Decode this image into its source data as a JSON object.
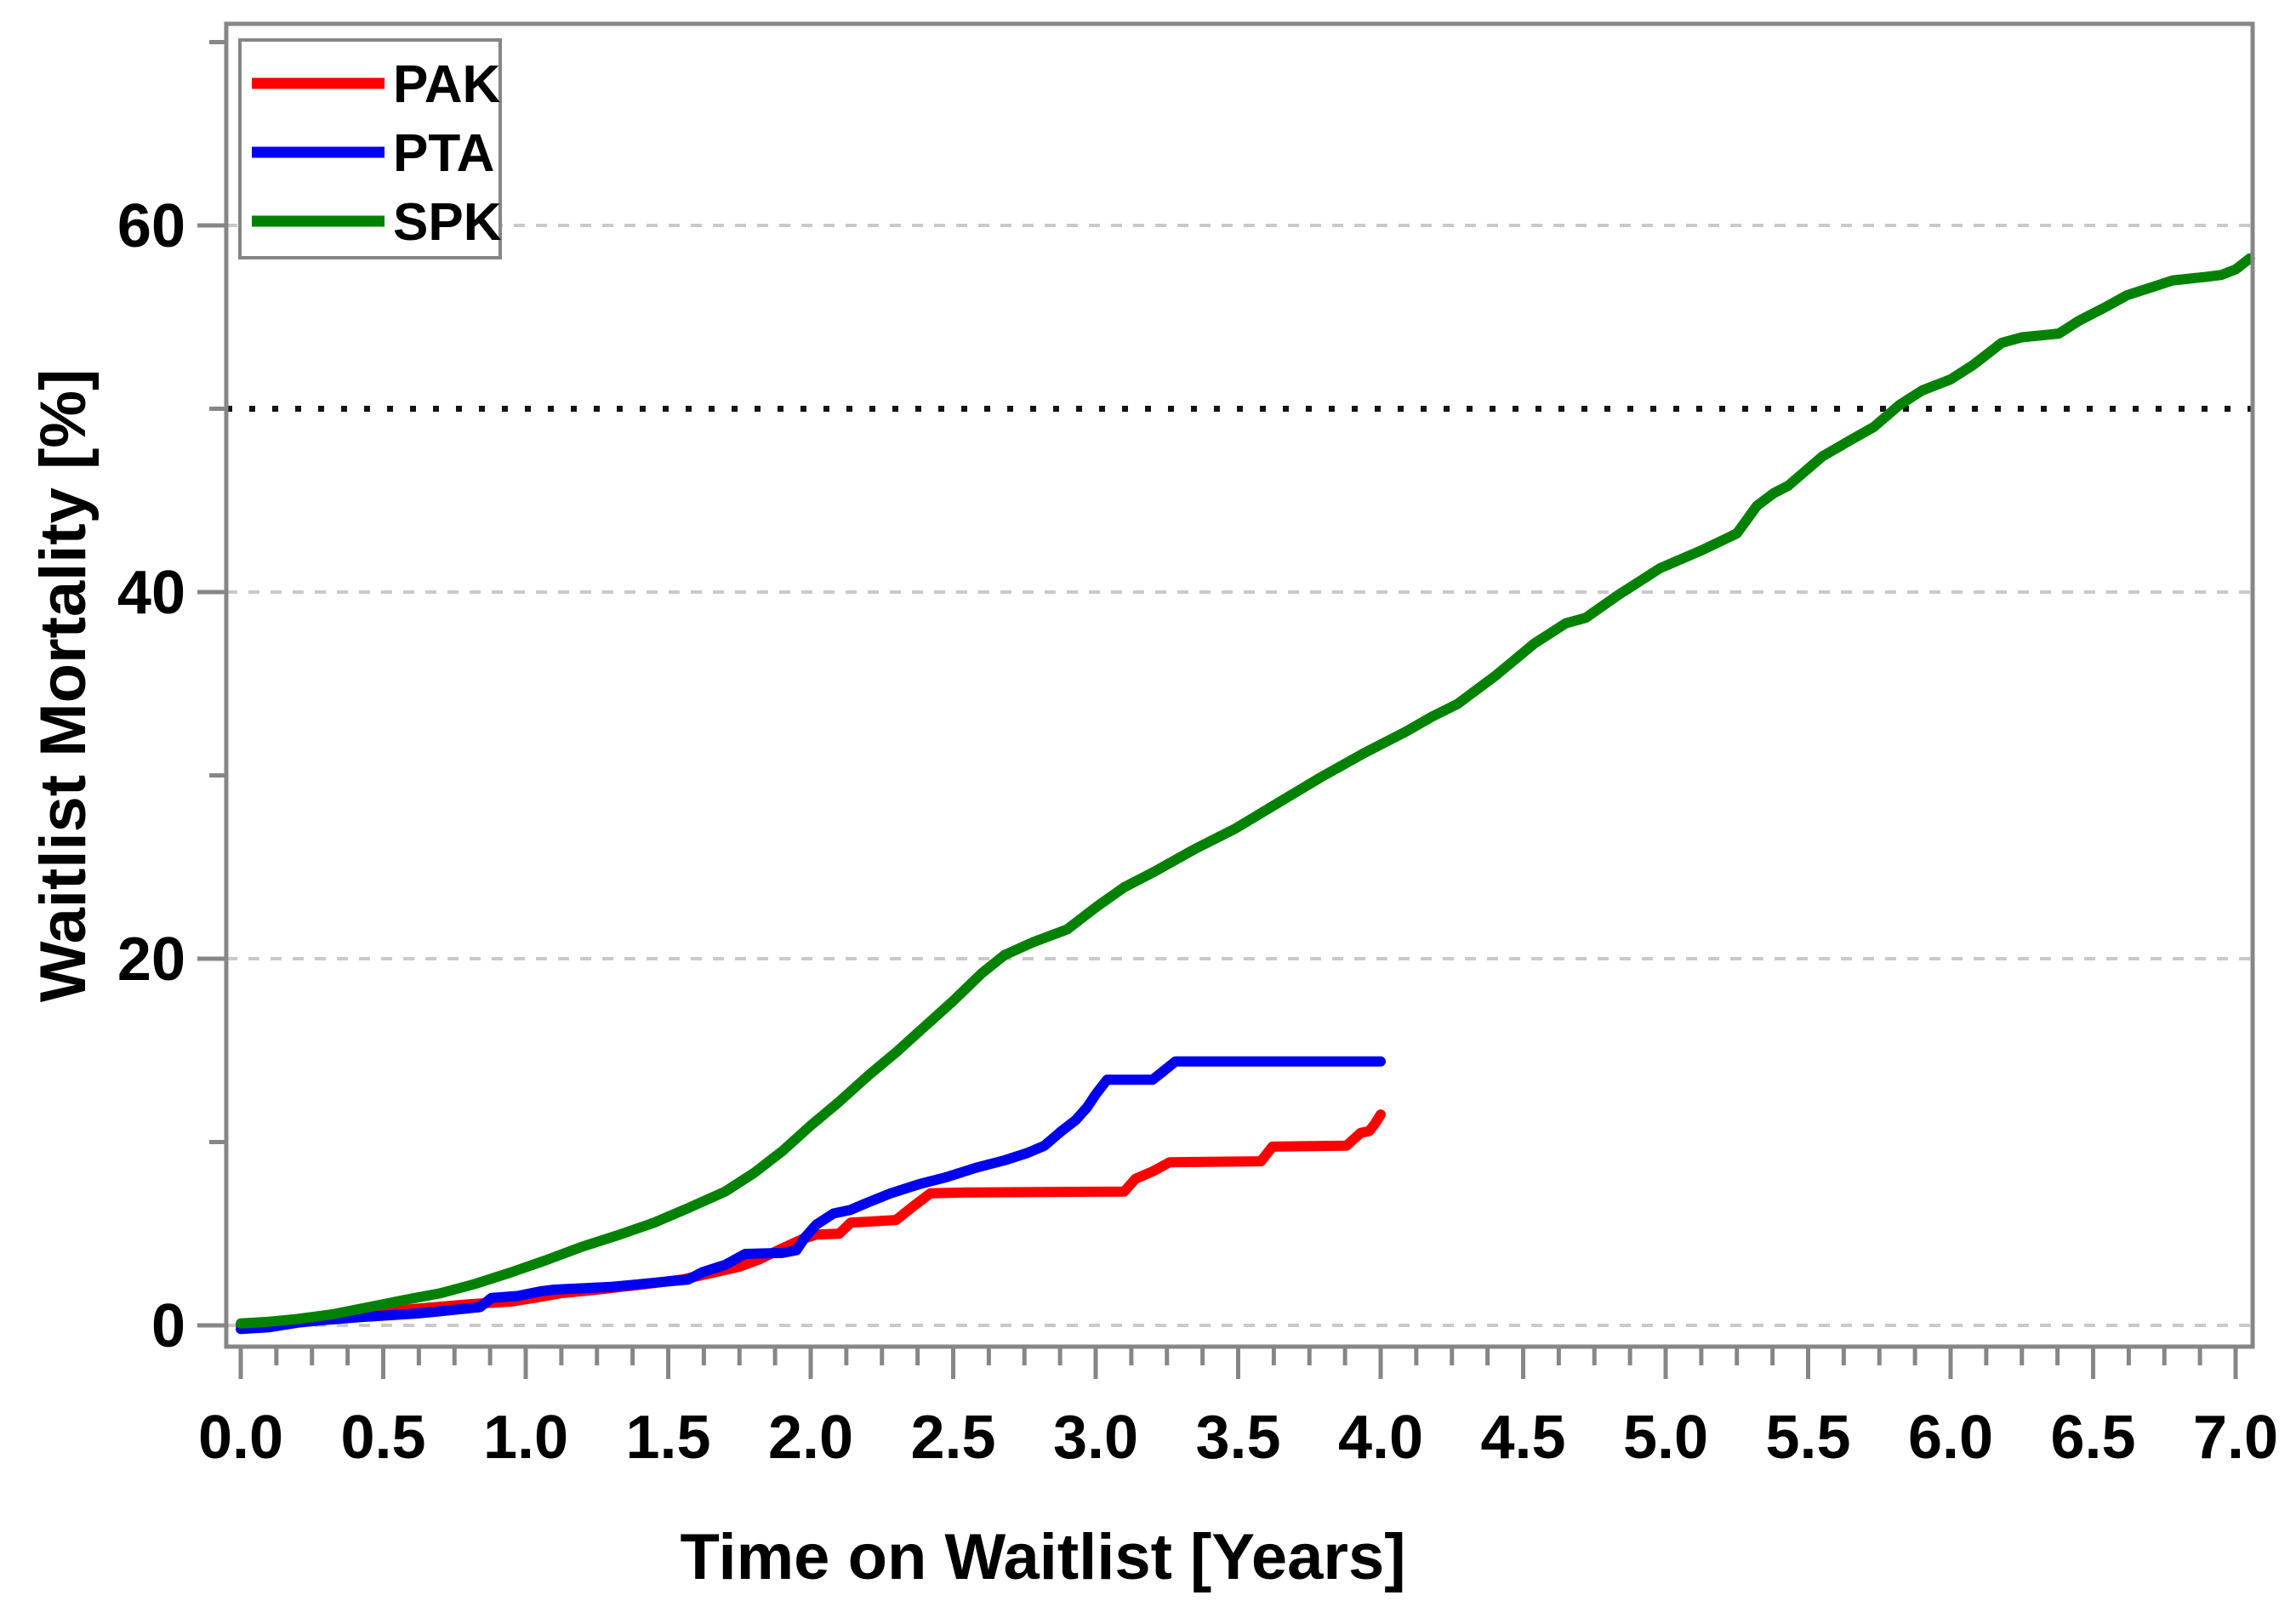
{
  "chart_data": {
    "type": "line",
    "title": "",
    "xlabel": "Time on Waitlist [Years]",
    "ylabel": "Waitlist Mortality [%]",
    "x_range": [
      0,
      7.06
    ],
    "y_range": [
      -1.2,
      71
    ],
    "grid_on": true,
    "legend_position": "top-left",
    "x_major_ticks": {
      "values": [
        0,
        0.5,
        1,
        1.5,
        2,
        2.5,
        3,
        3.5,
        4,
        4.5,
        5,
        5.5,
        6,
        6.5,
        7
      ],
      "labels": [
        "0.0",
        "0.5",
        "1.0",
        "1.5",
        "2.0",
        "2.5",
        "3.0",
        "3.5",
        "4.0",
        "4.5",
        "5.0",
        "5.5",
        "6.0",
        "6.5",
        "7.0"
      ]
    },
    "x_minor_step": 0.125,
    "y_major_ticks": {
      "values": [
        0,
        20,
        40,
        60
      ],
      "labels": [
        "0",
        "20",
        "40",
        "60"
      ]
    },
    "y_minor_ticks": [
      10,
      30,
      50,
      70
    ],
    "gridlines_y": [
      0,
      20,
      40,
      60
    ],
    "reference_line_y": 50,
    "colors": {
      "frame": "#868686",
      "grid": "#c9c9c9",
      "reference": "#141414",
      "text": "#000000",
      "background": "#ffffff",
      "pak": "#ff0000",
      "pta": "#0000f0",
      "spk": "#008200"
    },
    "series": [
      {
        "name": "PAK",
        "color_key": "pak",
        "points": [
          [
            0,
            0
          ],
          [
            0.12,
            0.15
          ],
          [
            0.25,
            0.4
          ],
          [
            0.38,
            0.6
          ],
          [
            0.5,
            0.75
          ],
          [
            0.65,
            0.95
          ],
          [
            0.8,
            1.15
          ],
          [
            0.95,
            1.3
          ],
          [
            1.05,
            1.55
          ],
          [
            1.12,
            1.75
          ],
          [
            1.25,
            1.95
          ],
          [
            1.42,
            2.25
          ],
          [
            1.55,
            2.5
          ],
          [
            1.65,
            2.85
          ],
          [
            1.75,
            3.2
          ],
          [
            1.82,
            3.6
          ],
          [
            1.88,
            4.05
          ],
          [
            1.97,
            4.7
          ],
          [
            2.02,
            4.95
          ],
          [
            2.1,
            5.0
          ],
          [
            2.14,
            5.6
          ],
          [
            2.3,
            5.75
          ],
          [
            2.36,
            6.5
          ],
          [
            2.42,
            7.2
          ],
          [
            2.55,
            7.25
          ],
          [
            3.1,
            7.3
          ],
          [
            3.14,
            8.0
          ],
          [
            3.2,
            8.4
          ],
          [
            3.26,
            8.9
          ],
          [
            3.58,
            8.95
          ],
          [
            3.62,
            9.75
          ],
          [
            3.88,
            9.8
          ],
          [
            3.93,
            10.5
          ],
          [
            3.96,
            10.6
          ],
          [
            3.98,
            11.0
          ],
          [
            4.0,
            11.5
          ]
        ]
      },
      {
        "name": "PTA",
        "color_key": "pta",
        "points": [
          [
            0,
            -0.2
          ],
          [
            0.1,
            -0.1
          ],
          [
            0.2,
            0.15
          ],
          [
            0.3,
            0.3
          ],
          [
            0.42,
            0.45
          ],
          [
            0.52,
            0.55
          ],
          [
            0.62,
            0.65
          ],
          [
            0.75,
            0.85
          ],
          [
            0.84,
            1.0
          ],
          [
            0.88,
            1.5
          ],
          [
            0.97,
            1.6
          ],
          [
            1.05,
            1.85
          ],
          [
            1.1,
            1.95
          ],
          [
            1.3,
            2.1
          ],
          [
            1.37,
            2.2
          ],
          [
            1.5,
            2.4
          ],
          [
            1.57,
            2.5
          ],
          [
            1.62,
            2.9
          ],
          [
            1.7,
            3.3
          ],
          [
            1.77,
            3.9
          ],
          [
            1.9,
            3.95
          ],
          [
            1.95,
            4.1
          ],
          [
            1.98,
            4.8
          ],
          [
            2.02,
            5.5
          ],
          [
            2.08,
            6.1
          ],
          [
            2.14,
            6.3
          ],
          [
            2.2,
            6.7
          ],
          [
            2.28,
            7.2
          ],
          [
            2.38,
            7.7
          ],
          [
            2.48,
            8.1
          ],
          [
            2.58,
            8.6
          ],
          [
            2.68,
            9.0
          ],
          [
            2.76,
            9.4
          ],
          [
            2.82,
            9.8
          ],
          [
            2.88,
            10.6
          ],
          [
            2.93,
            11.2
          ],
          [
            2.97,
            11.9
          ],
          [
            3.0,
            12.6
          ],
          [
            3.04,
            13.4
          ],
          [
            3.2,
            13.4
          ],
          [
            3.24,
            13.9
          ],
          [
            3.28,
            14.4
          ],
          [
            4.0,
            14.4
          ]
        ]
      },
      {
        "name": "SPK",
        "color_key": "spk",
        "points": [
          [
            0,
            0.1
          ],
          [
            0.1,
            0.2
          ],
          [
            0.2,
            0.35
          ],
          [
            0.32,
            0.6
          ],
          [
            0.45,
            1.0
          ],
          [
            0.58,
            1.4
          ],
          [
            0.7,
            1.75
          ],
          [
            0.82,
            2.25
          ],
          [
            0.95,
            2.9
          ],
          [
            1.07,
            3.55
          ],
          [
            1.2,
            4.3
          ],
          [
            1.32,
            4.9
          ],
          [
            1.45,
            5.6
          ],
          [
            1.57,
            6.4
          ],
          [
            1.7,
            7.3
          ],
          [
            1.8,
            8.3
          ],
          [
            1.9,
            9.5
          ],
          [
            2.0,
            10.9
          ],
          [
            2.1,
            12.2
          ],
          [
            2.2,
            13.6
          ],
          [
            2.3,
            14.9
          ],
          [
            2.4,
            16.3
          ],
          [
            2.5,
            17.7
          ],
          [
            2.6,
            19.2
          ],
          [
            2.68,
            20.2
          ],
          [
            2.78,
            20.9
          ],
          [
            2.9,
            21.6
          ],
          [
            3.0,
            22.8
          ],
          [
            3.1,
            23.9
          ],
          [
            3.2,
            24.7
          ],
          [
            3.35,
            26.0
          ],
          [
            3.49,
            27.1
          ],
          [
            3.64,
            28.5
          ],
          [
            3.79,
            29.9
          ],
          [
            3.94,
            31.2
          ],
          [
            4.09,
            32.4
          ],
          [
            4.18,
            33.2
          ],
          [
            4.27,
            33.9
          ],
          [
            4.4,
            35.4
          ],
          [
            4.54,
            37.2
          ],
          [
            4.65,
            38.3
          ],
          [
            4.72,
            38.6
          ],
          [
            4.83,
            39.8
          ],
          [
            4.98,
            41.3
          ],
          [
            5.13,
            42.3
          ],
          [
            5.25,
            43.2
          ],
          [
            5.32,
            44.7
          ],
          [
            5.38,
            45.4
          ],
          [
            5.43,
            45.8
          ],
          [
            5.55,
            47.4
          ],
          [
            5.65,
            48.3
          ],
          [
            5.73,
            49.0
          ],
          [
            5.82,
            50.2
          ],
          [
            5.9,
            51.0
          ],
          [
            6.0,
            51.6
          ],
          [
            6.08,
            52.4
          ],
          [
            6.18,
            53.6
          ],
          [
            6.25,
            53.9
          ],
          [
            6.38,
            54.1
          ],
          [
            6.45,
            54.8
          ],
          [
            6.55,
            55.6
          ],
          [
            6.62,
            56.2
          ],
          [
            6.68,
            56.5
          ],
          [
            6.78,
            57.0
          ],
          [
            6.9,
            57.2
          ],
          [
            6.95,
            57.3
          ],
          [
            7.0,
            57.6
          ],
          [
            7.05,
            58.2
          ]
        ]
      }
    ],
    "legend": {
      "entries": [
        "PAK",
        "PTA",
        "SPK"
      ]
    }
  }
}
